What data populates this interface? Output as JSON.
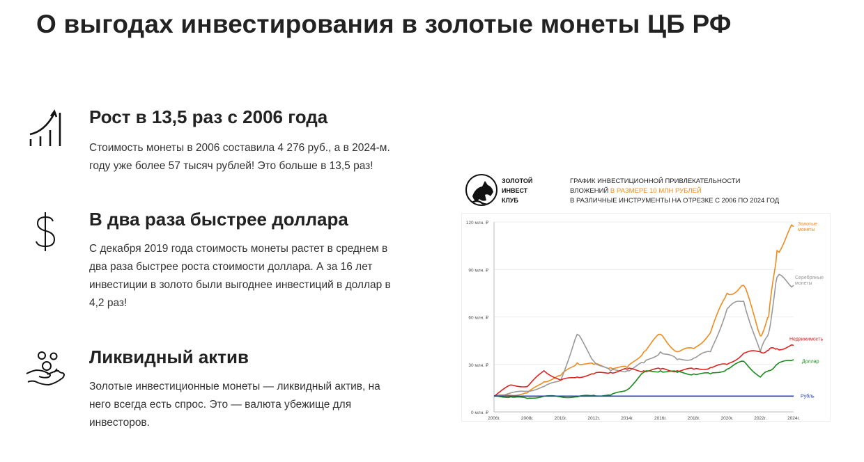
{
  "page": {
    "title": "О выгодах инвестирования в золотые монеты ЦБ РФ"
  },
  "features": [
    {
      "icon": "growth-chart-icon",
      "title": "Рост в 13,5 раз с 2006 года",
      "lines": [
        "Стоимость монеты в 2006 составила 4 276 руб., а в 2024-м.",
        "году уже более 57 тысяч рублей! Это больше в 13,5 раз!"
      ]
    },
    {
      "icon": "dollar-icon",
      "title": "В два раза быстрее доллара",
      "lines": [
        "С декабря 2019 года стоимость монеты растет в среднем в",
        "два раза быстрее роста стоимости доллара. А за 16 лет",
        "инвестиции в золото были выгоднее инвестиций в доллар в",
        "4,2 раз!"
      ]
    },
    {
      "icon": "coins-in-hand-icon",
      "title": "Ликвидный актив",
      "lines": [
        "Золотые инвестиционные монеты — ликвидный актив, на",
        "него всегда есть спрос. Это — валюта убежище для",
        "инвесторов."
      ]
    }
  ],
  "chart_header": {
    "logo_lines": [
      "ЗОЛОТОЙ",
      "ИНВЕСТ",
      "КЛУБ"
    ],
    "caption_line1": "ГРАФИК ИНВЕСТИЦИОННОЙ ПРИВЛЕКАТЕЛЬНОСТИ",
    "caption_line2_prefix": "ВЛОЖЕНИЙ ",
    "caption_line2_accent": "В РАЗМЕРЕ 10 МЛН РУБЛЕЙ",
    "caption_line3": "В РАЗЛИЧНЫЕ ИНСТРУМЕНТЫ НА ОТРЕЗКЕ С 2006 ПО 2024 ГОД",
    "accent_color": "#f08a1c"
  },
  "chart_data": {
    "type": "line",
    "title": "График инвестиционной привлекательности вложений в размере 10 млн рублей в различные инструменты на отрезке с 2006 по 2024 год",
    "xlabel": "",
    "ylabel": "",
    "x": [
      2006,
      2007,
      2008,
      2009,
      2010,
      2011,
      2012,
      2013,
      2014,
      2015,
      2016,
      2017,
      2018,
      2019,
      2020,
      2021,
      2022,
      2022.5,
      2023,
      2024
    ],
    "x_tick_labels": [
      "2006г.",
      "2008г.",
      "2010г.",
      "2012г.",
      "2014г.",
      "2016г.",
      "2018г.",
      "2020г.",
      "2022г.",
      "2024г."
    ],
    "y_tick_labels": [
      "0 млн. ₽",
      "30 млн. ₽",
      "60 млн. ₽",
      "90 млн. ₽",
      "120 млн. ₽"
    ],
    "ylim": [
      0,
      120
    ],
    "grid": true,
    "legend_position": "right (inline labels at line ends)",
    "series": [
      {
        "name": "Золотые монеты",
        "color": "#f08a1c",
        "values": [
          10,
          10.5,
          12,
          19,
          23,
          31,
          30,
          28,
          28,
          38,
          49,
          38,
          40,
          50,
          75,
          80,
          48,
          60,
          102,
          117
        ]
      },
      {
        "name": "Серебряные монеты",
        "color": "#999999",
        "values": [
          10,
          12,
          13,
          16,
          20,
          49,
          32,
          26,
          26,
          31,
          38,
          33,
          34,
          38,
          65,
          70,
          38,
          50,
          85,
          80
        ]
      },
      {
        "name": "Недвижимость",
        "color": "#e02020",
        "values": [
          10,
          17,
          16,
          26,
          20,
          22,
          24,
          25,
          27,
          26,
          27,
          26,
          27,
          28,
          30,
          37,
          38,
          39,
          40,
          42
        ]
      },
      {
        "name": "Доллар",
        "color": "#1a8a1a",
        "values": [
          10,
          9.5,
          8.5,
          10,
          9.5,
          9.5,
          10.5,
          10.5,
          14,
          25,
          26,
          25,
          24,
          24,
          27,
          32,
          22,
          26,
          30,
          33
        ]
      },
      {
        "name": "Рубль",
        "color": "#2040b0",
        "values": [
          10,
          10,
          10,
          10,
          10,
          10,
          10,
          10,
          10,
          10,
          10,
          10,
          10,
          10,
          10,
          10,
          10,
          10,
          10,
          10
        ]
      }
    ]
  }
}
